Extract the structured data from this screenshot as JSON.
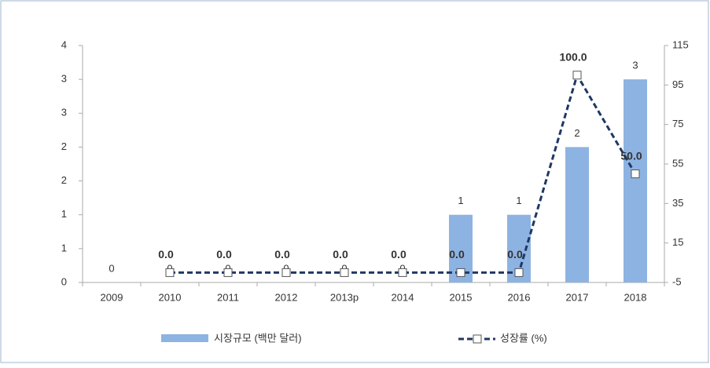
{
  "chart_data": {
    "type": "bar-line",
    "categories": [
      "2009",
      "2010",
      "2011",
      "2012",
      "2013p",
      "2014",
      "2015",
      "2016",
      "2017",
      "2018"
    ],
    "series": [
      {
        "name": "시장규모 (백만 달러)",
        "type": "bar",
        "color": "#8db3e2",
        "values": [
          0,
          0,
          0,
          0,
          0,
          0,
          1,
          1,
          2,
          3
        ],
        "value_labels": [
          "0",
          "0",
          "0",
          "0",
          "0",
          "0",
          "1",
          "1",
          "2",
          "3"
        ]
      },
      {
        "name": "성장률 (%)",
        "type": "line",
        "axis": "y2",
        "color": "#1f3864",
        "values": [
          null,
          0,
          0,
          0,
          0,
          0,
          0,
          0,
          100,
          50
        ],
        "value_labels": [
          null,
          "0.0",
          "0.0",
          "0.0",
          "0.0",
          "0.0",
          "0.0",
          "0.0",
          "100.0",
          "50.0"
        ]
      }
    ],
    "ylim": [
      0,
      3.5
    ],
    "yticks": [
      0,
      {
        "value": 0.5,
        "label": "1"
      },
      1,
      {
        "value": 1.5,
        "label": "2"
      },
      2,
      {
        "value": 2.5,
        "label": "3"
      },
      3,
      {
        "value": 3.5,
        "label": "4"
      }
    ],
    "y2lim": [
      -5,
      115
    ],
    "y2ticks": [
      -5,
      15,
      35,
      55,
      75,
      95,
      115
    ],
    "legend": "bottom"
  }
}
